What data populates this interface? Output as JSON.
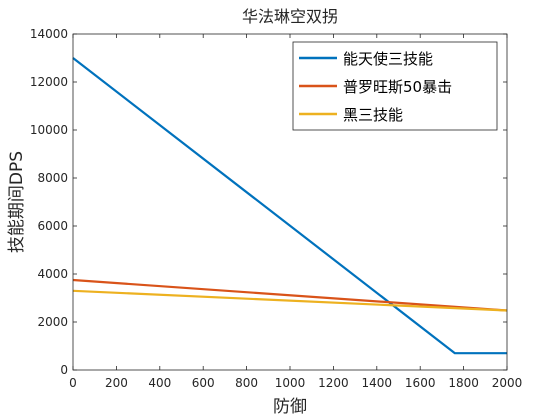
{
  "chart_data": {
    "type": "line",
    "title": "华法琳空双拐",
    "xlabel": "防御",
    "ylabel": "技能期间DPS",
    "xlim": [
      0,
      2000
    ],
    "ylim": [
      0,
      14000
    ],
    "xticks": [
      0,
      200,
      400,
      600,
      800,
      1000,
      1200,
      1400,
      1600,
      1800,
      2000
    ],
    "yticks": [
      0,
      2000,
      4000,
      6000,
      8000,
      10000,
      12000,
      14000
    ],
    "grid": false,
    "legend_position": "top-right",
    "series": [
      {
        "name": "能天使三技能",
        "color": "#0072BD",
        "x": [
          0,
          1760,
          2000
        ],
        "y": [
          13000,
          700,
          700
        ]
      },
      {
        "name": "普罗旺斯50暴击",
        "color": "#D95319",
        "x": [
          0,
          2000
        ],
        "y": [
          3750,
          2480
        ]
      },
      {
        "name": "黑三技能",
        "color": "#EDB120",
        "x": [
          0,
          2000
        ],
        "y": [
          3300,
          2480
        ]
      }
    ]
  }
}
